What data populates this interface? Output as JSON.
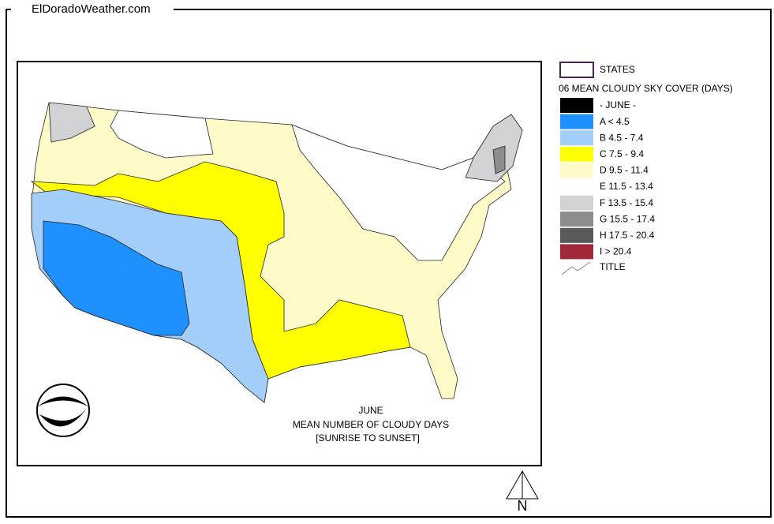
{
  "header": {
    "site": "ElDoradoWeather.com"
  },
  "legend": {
    "states": "STATES",
    "heading": "06 MEAN CLOUDY SKY COVER (DAYS)",
    "items": [
      {
        "label": "- JUNE -",
        "color": "#000000"
      },
      {
        "label": "A < 4.5",
        "color": "#1e90ff"
      },
      {
        "label": "B 4.5 - 7.4",
        "color": "#a4cefa"
      },
      {
        "label": "C 7.5 - 9.4",
        "color": "#ffff00"
      },
      {
        "label": "D 9.5 - 11.4",
        "color": "#fffbc8"
      },
      {
        "label": "E 11.5 - 13.4",
        "color": "#ffffff"
      },
      {
        "label": "F 13.5 - 15.4",
        "color": "#d2d2d6"
      },
      {
        "label": "G 15.5 - 17.4",
        "color": "#8c8c8c"
      },
      {
        "label": "H 17.5 - 20.4",
        "color": "#5a5a5a"
      },
      {
        "label": "I > 20.4",
        "color": "#a02838"
      }
    ],
    "title": "TITLE"
  },
  "map": {
    "caption": [
      "JUNE",
      "MEAN NUMBER OF CLOUDY DAYS",
      "[SUNRISE TO SUNSET]"
    ],
    "compass": "N"
  }
}
